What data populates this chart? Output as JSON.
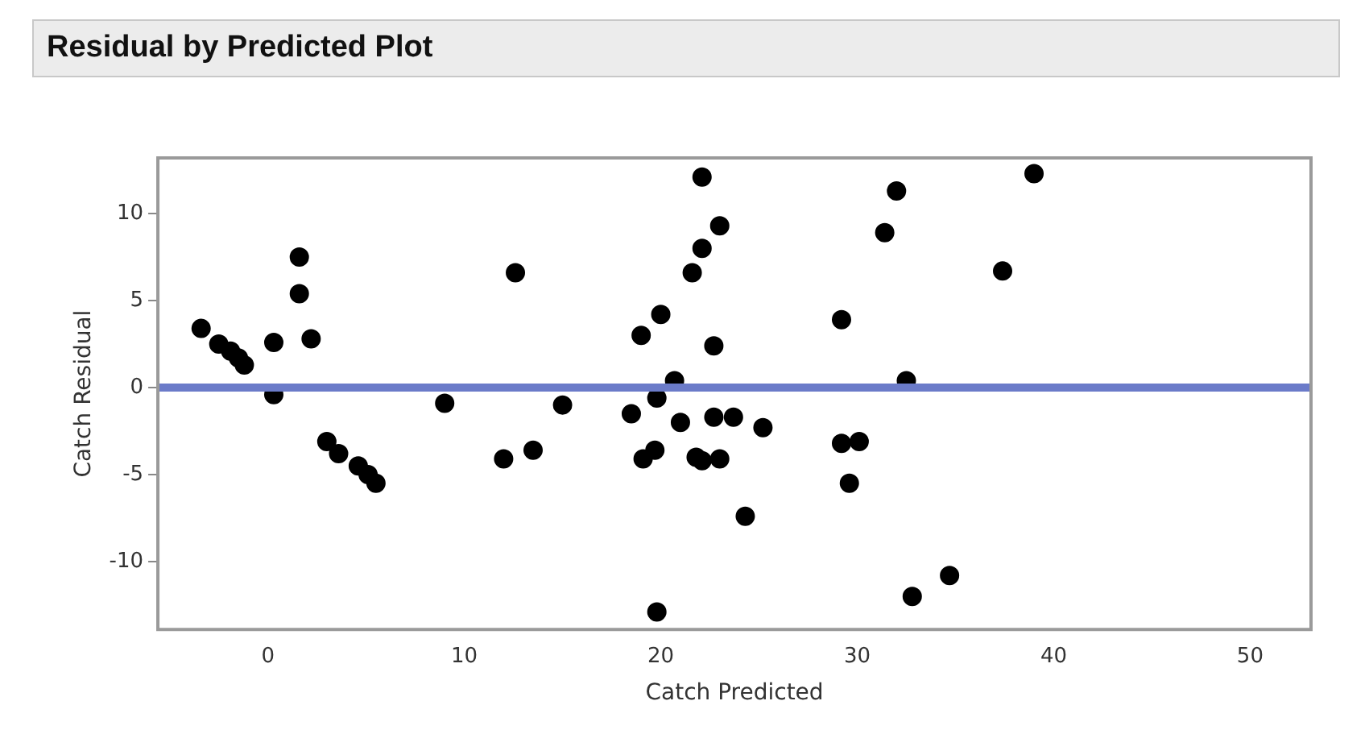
{
  "chart_data": {
    "type": "scatter",
    "title": "Residual by Predicted Plot",
    "xlabel": "Catch Predicted",
    "ylabel": "Catch Residual",
    "xlim": [
      -5.6,
      53.1
    ],
    "xticks": [
      0,
      10,
      20,
      30,
      40,
      50
    ],
    "ylim": [
      -13.9,
      13.2
    ],
    "yticks": [
      -10,
      -5,
      0,
      5,
      10
    ],
    "grid": false,
    "legend": false,
    "marker": "circle",
    "ref_lines": [
      {
        "axis": "y",
        "value": 0,
        "color": "#6b7bc9"
      }
    ],
    "series": [
      {
        "color": "#000000",
        "x": [
          -3.4,
          -2.5,
          -1.9,
          -1.5,
          -1.2,
          0.3,
          0.3,
          1.6,
          1.6,
          2.2,
          3.0,
          3.6,
          4.6,
          5.1,
          5.5,
          9.0,
          12.0,
          12.6,
          13.5,
          15.0,
          18.5,
          19.0,
          19.1,
          19.7,
          19.8,
          20.0,
          19.8,
          20.7,
          21.0,
          21.6,
          22.1,
          22.1,
          21.8,
          22.1,
          22.7,
          22.7,
          23.0,
          23.0,
          23.7,
          24.3,
          25.2,
          29.2,
          29.2,
          29.6,
          30.1,
          31.4,
          32.0,
          32.5,
          32.8,
          34.7,
          37.4,
          39.0
        ],
        "values": [
          3.4,
          2.5,
          2.1,
          1.7,
          1.3,
          2.6,
          -0.4,
          7.5,
          5.4,
          2.8,
          -3.1,
          -3.8,
          -4.5,
          -5.0,
          -5.5,
          -0.9,
          -4.1,
          6.6,
          -3.6,
          -1.0,
          -1.5,
          3.0,
          -4.1,
          -3.6,
          -0.6,
          4.2,
          -12.9,
          0.4,
          -2.0,
          6.6,
          8.0,
          12.1,
          -4.0,
          -4.2,
          2.4,
          -1.7,
          9.3,
          -4.1,
          -1.7,
          -7.4,
          -2.3,
          3.9,
          -3.2,
          -5.5,
          -3.1,
          8.9,
          11.3,
          0.4,
          -12.0,
          -10.8,
          6.7,
          12.3
        ]
      }
    ]
  }
}
